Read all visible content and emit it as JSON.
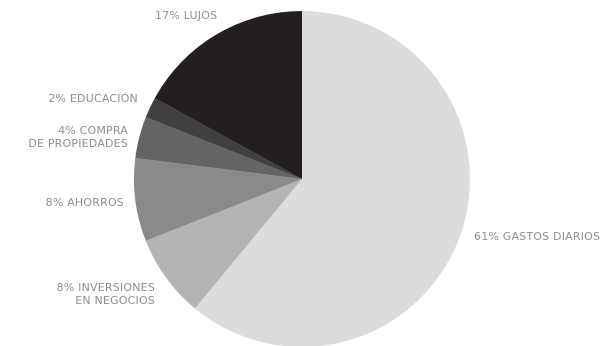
{
  "chart_data": {
    "type": "pie",
    "title": "",
    "unit": "%",
    "start_angle_deg": 0,
    "direction": "clockwise",
    "slices": [
      {
        "label": "61% GASTOS DIARIOS",
        "lines": [
          "61% GASTOS DIARIOS"
        ],
        "value": 61,
        "color": "#dcdcdd"
      },
      {
        "label": "8% INVERSIONES EN NEGOCIOS",
        "lines": [
          "8% INVERSIONES",
          "EN NEGOCIOS"
        ],
        "value": 8,
        "color": "#b4b4b5"
      },
      {
        "label": "8% AHORROS",
        "lines": [
          "8% AHORROS"
        ],
        "value": 8,
        "color": "#8a8a8b"
      },
      {
        "label": "4% COMPRA DE PROPIEDADES",
        "lines": [
          "4% COMPRA",
          "DE PROPIEDADES"
        ],
        "value": 4,
        "color": "#646465"
      },
      {
        "label": "2% EDUCACIÓN",
        "lines": [
          "2% EDUCACIÓN"
        ],
        "value": 2,
        "color": "#404041"
      },
      {
        "label": "17% LUJOS",
        "lines": [
          "17% LUJOS"
        ],
        "value": 17,
        "color": "#231f20"
      }
    ]
  }
}
